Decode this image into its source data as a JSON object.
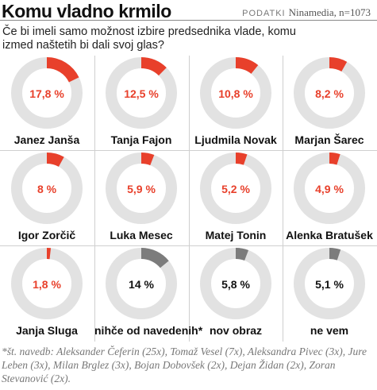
{
  "title": "Komu vladno krmilo",
  "source_label": "PODATKI",
  "source_text": "Ninamedia, n=1073",
  "subtitle": "Če bi imeli samo možnost izbire predsednika vlade, komu izmed naštetih bi dali svoj glas?",
  "footnote": "*št. navedb: Aleksander Čeferin (25x), Tomaž Vesel (7x), Aleksandra Pivec (3x), Jure Leben (3x), Milan Brglez (3x), Bojan Dobovšek (2x), Dejan Židan (2x), Zoran Stevanović (2x).",
  "colors": {
    "accent": "#e8402b",
    "neutral": "#7c7c7c",
    "track": "#e2e2e2"
  },
  "chart_data": {
    "type": "donut",
    "title": "Komu vladno krmilo",
    "items": [
      {
        "name": "Janez Janša",
        "value": 17.8,
        "label": "17,8 %",
        "kind": "candidate"
      },
      {
        "name": "Tanja Fajon",
        "value": 12.5,
        "label": "12,5 %",
        "kind": "candidate"
      },
      {
        "name": "Ljudmila Novak",
        "value": 10.8,
        "label": "10,8 %",
        "kind": "candidate"
      },
      {
        "name": "Marjan Šarec",
        "value": 8.2,
        "label": "8,2 %",
        "kind": "candidate"
      },
      {
        "name": "Igor Zorčič",
        "value": 8,
        "label": "8 %",
        "kind": "candidate"
      },
      {
        "name": "Luka Mesec",
        "value": 5.9,
        "label": "5,9 %",
        "kind": "candidate"
      },
      {
        "name": "Matej Tonin",
        "value": 5.2,
        "label": "5,2 %",
        "kind": "candidate"
      },
      {
        "name": "Alenka Bratušek",
        "value": 4.9,
        "label": "4,9 %",
        "kind": "candidate"
      },
      {
        "name": "Janja Sluga",
        "value": 1.8,
        "label": "1,8 %",
        "kind": "candidate"
      },
      {
        "name": "nihče od navedenih*",
        "value": 14,
        "label": "14 %",
        "kind": "other"
      },
      {
        "name": "nov obraz",
        "value": 5.8,
        "label": "5,8 %",
        "kind": "other"
      },
      {
        "name": "ne vem",
        "value": 5.1,
        "label": "5,1 %",
        "kind": "other"
      }
    ]
  }
}
